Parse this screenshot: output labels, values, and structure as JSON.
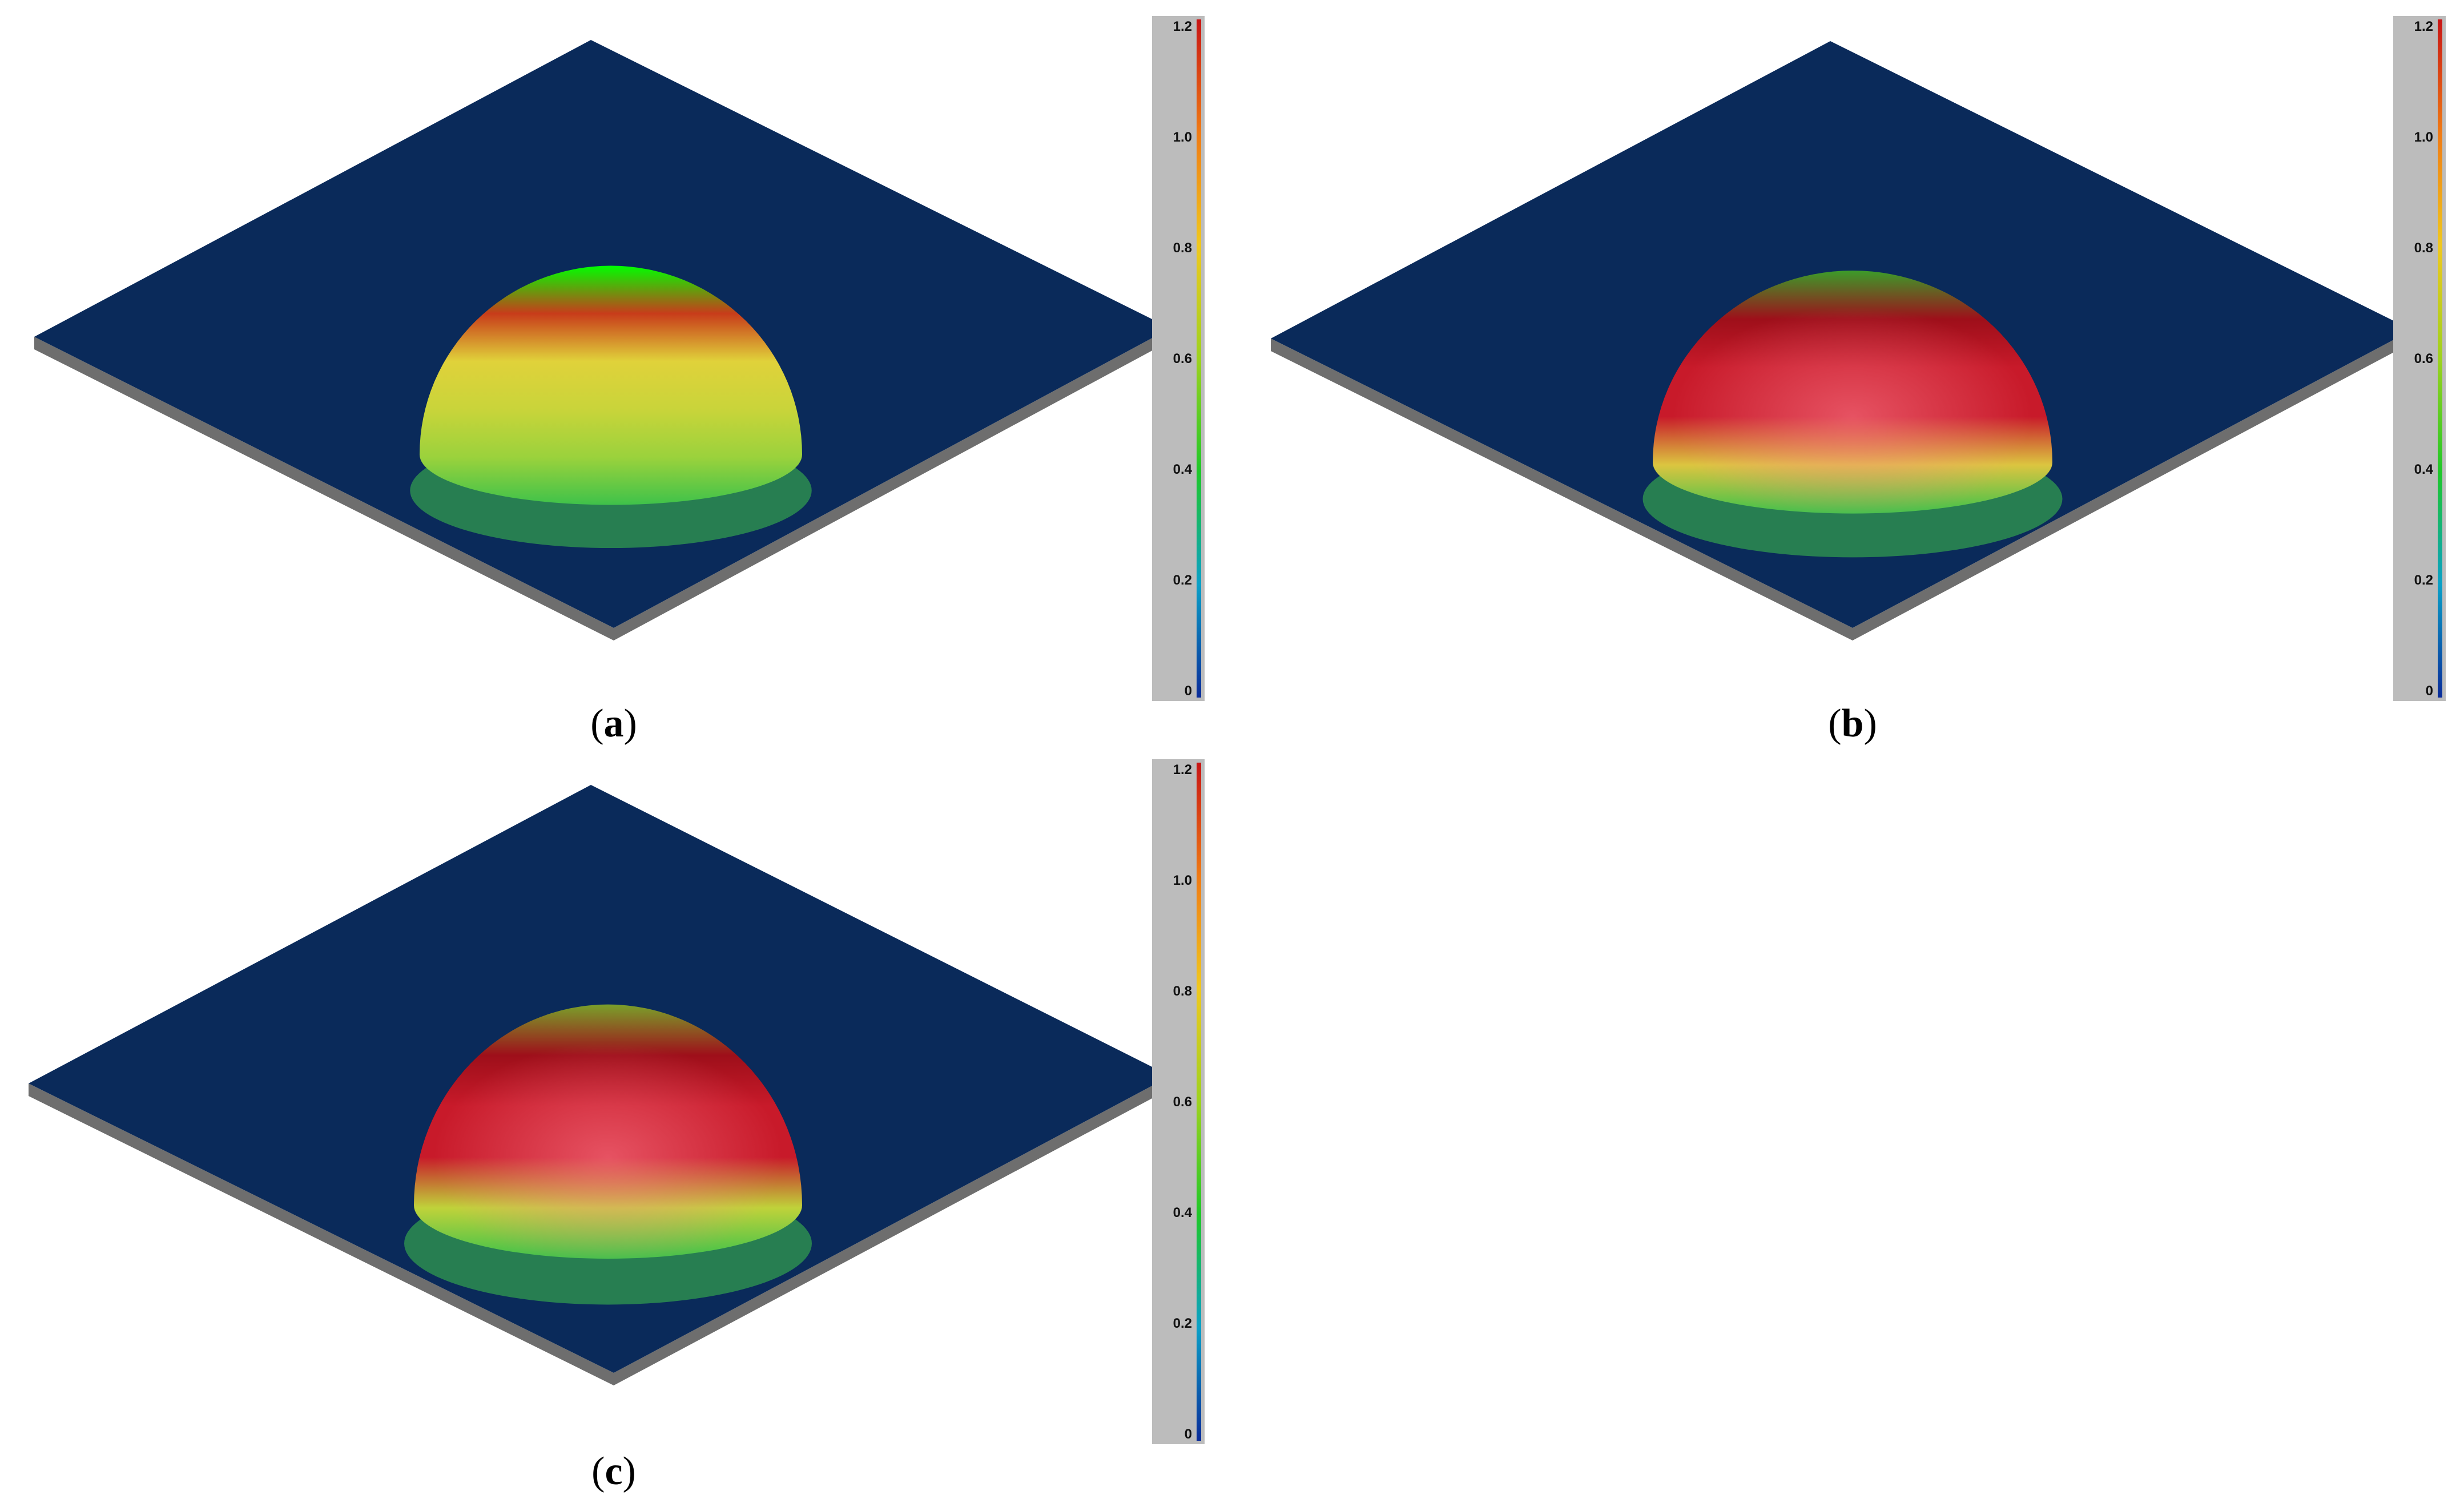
{
  "figure": {
    "panels": [
      {
        "id": "a",
        "label_open": "(",
        "label_letter": "a",
        "label_close": ")",
        "color_ramp": [
          "#00ff00",
          "#c83c1a",
          "#e0d23a",
          "#c9d43a",
          "#9bd23c",
          "#3fc24a"
        ]
      },
      {
        "id": "b",
        "label_open": "(",
        "label_letter": "b",
        "label_close": ")",
        "color_ramp": [
          "#3c9c2a",
          "#9e0f1a",
          "#c81a2a",
          "#c81a2a",
          "#dcc540",
          "#3fc24a"
        ]
      },
      {
        "id": "c",
        "label_open": "(",
        "label_letter": "c",
        "label_close": ")",
        "color_ramp": [
          "#7aa02a",
          "#9e0f1a",
          "#c81a2a",
          "#c81a2a",
          "#c0d23a",
          "#3fc24a"
        ]
      }
    ],
    "colorbar": {
      "min": 0,
      "max": 1.2,
      "ticks": [
        "0",
        "0.2",
        "0.4",
        "0.6",
        "0.8",
        "1.0",
        "1.2"
      ],
      "colors": [
        "#0a2c9a",
        "#0aa0c8",
        "#1ec828",
        "#9ed21e",
        "#f0c81e",
        "#f07a14",
        "#c81414"
      ]
    },
    "plate_color": "#0a2a5a",
    "plate_edge_color": "#6e6e6e"
  }
}
